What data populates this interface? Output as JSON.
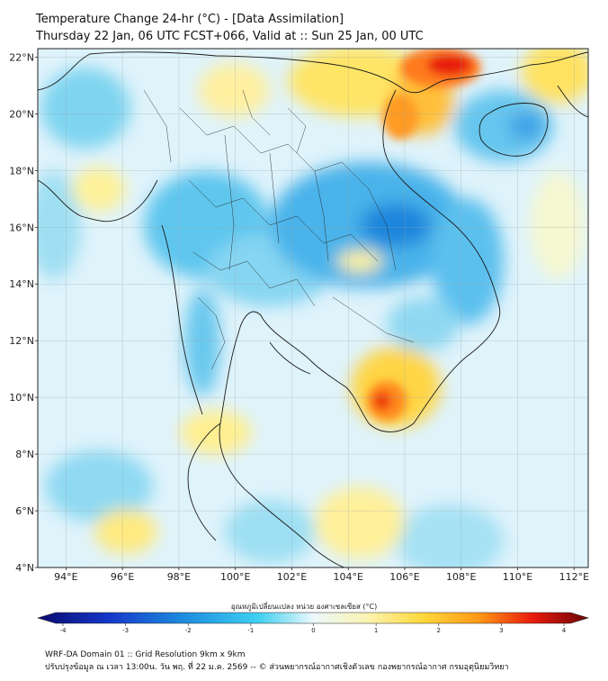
{
  "header": {
    "line1": "Temperature Change 24-hr (°C) - [Data Assimilation]",
    "line2": "Thursday 22 Jan, 06 UTC FCST+066, Valid at :: Sun 25 Jan, 00 UTC"
  },
  "map": {
    "lat_labels": [
      "22°N",
      "20°N",
      "18°N",
      "16°N",
      "14°N",
      "12°N",
      "10°N",
      "8°N",
      "6°N",
      "4°N"
    ],
    "lon_labels": [
      "94°E",
      "96°E",
      "98°E",
      "100°E",
      "102°E",
      "104°E",
      "106°E",
      "108°E",
      "110°E",
      "112°E"
    ],
    "lat_range": [
      4,
      22.3
    ],
    "lon_range": [
      93,
      112.5
    ]
  },
  "colorbar": {
    "title": "อุณหภูมิเปลี่ยนแปลง หน่วย องศาเซลเซียส (°C)",
    "ticks": [
      "-4",
      "-3",
      "-2",
      "-1",
      "0",
      "1",
      "2",
      "3",
      "4"
    ],
    "min": -4,
    "max": 4
  },
  "footer": {
    "line1": "WRF-DA Domain 01 :: Grid Resolution 9km x 9km",
    "line2": "ปรับปรุงข้อมูล ณ เวลา 13:00น. วัน พฤ. ที่ 22 ม.ค. 2569 -- © ส่วนพยากรณ์อากาศเชิงตัวเลข กองพยากรณ์อากาศ กรมอุตุนิยมวิทยา"
  },
  "colors": {
    "cold": "#1e8fe0",
    "neutral": "#e6f6fc",
    "warm": "#ffdf4a",
    "hot": "#e8180e"
  }
}
